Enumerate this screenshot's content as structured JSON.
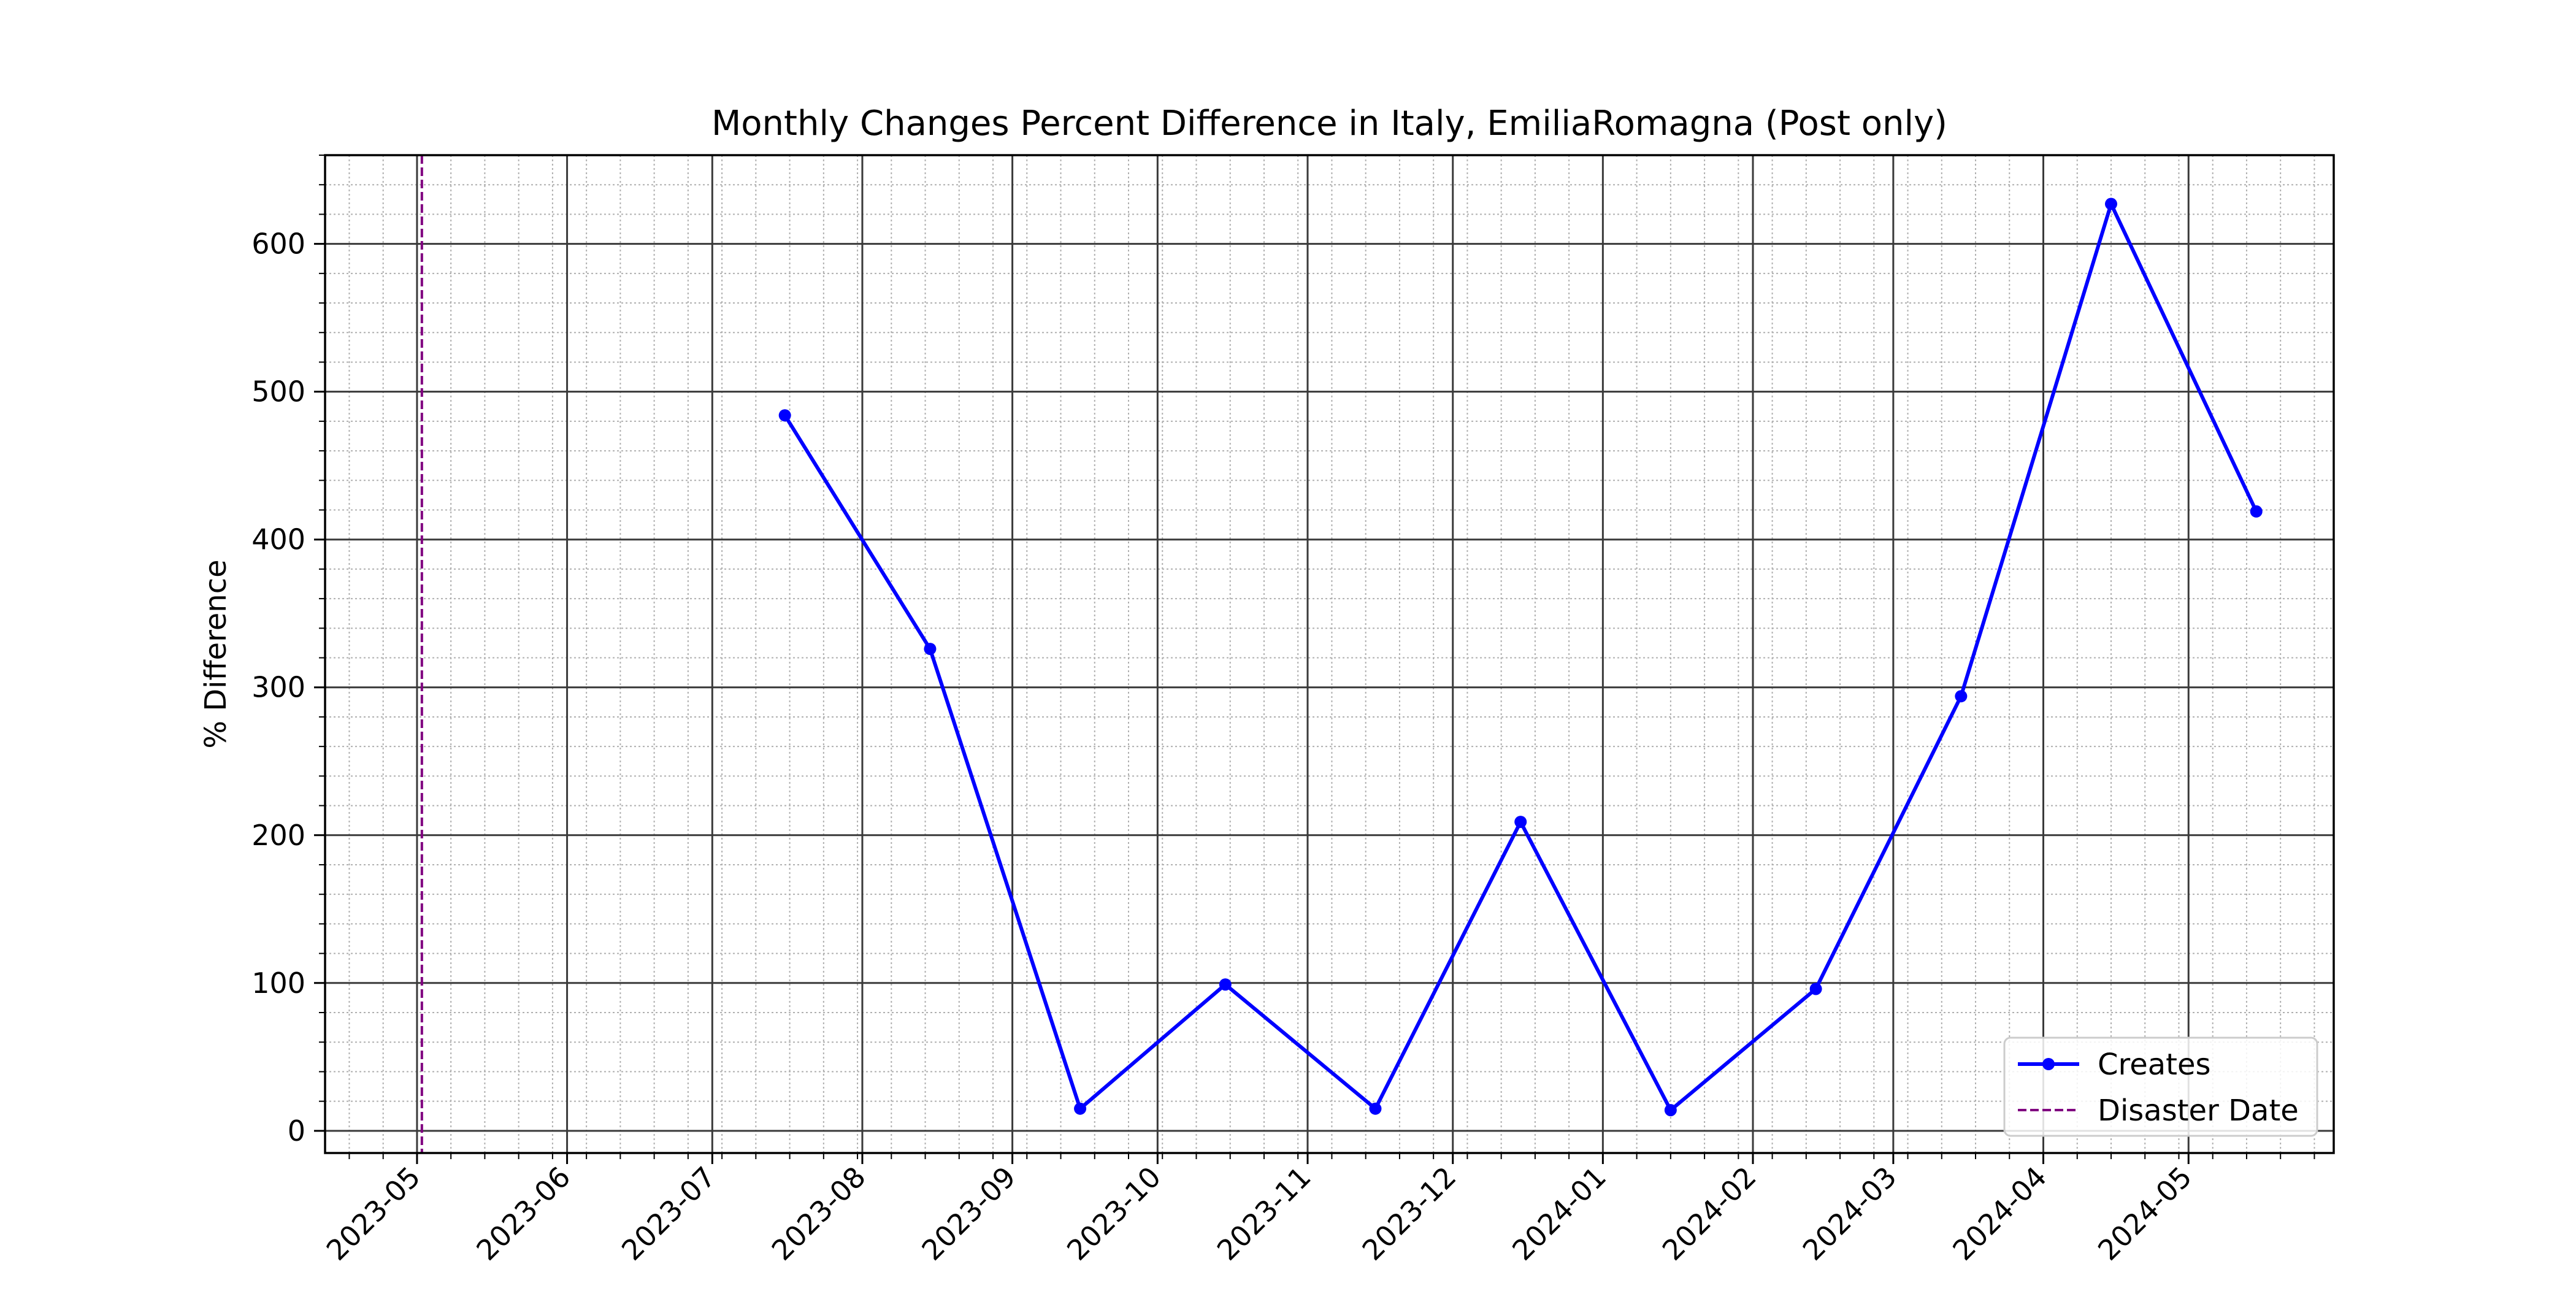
{
  "chart_data": {
    "type": "line",
    "title": "Monthly Changes Percent Difference in Italy, EmiliaRomagna (Post only)",
    "xlabel": "",
    "ylabel": "% Difference",
    "x_ticks": [
      "2023-05",
      "2023-06",
      "2023-07",
      "2023-08",
      "2023-09",
      "2023-10",
      "2023-11",
      "2023-12",
      "2024-01",
      "2024-02",
      "2024-03",
      "2024-04",
      "2024-05"
    ],
    "y_ticks": [
      0,
      100,
      200,
      300,
      400,
      500,
      600
    ],
    "xlim": [
      "2023-04-12",
      "2024-05-31"
    ],
    "ylim": [
      -15,
      660
    ],
    "grid": true,
    "minor_grid": true,
    "legend_position": "lower-right",
    "series": [
      {
        "name": "Creates",
        "color": "#0000ff",
        "marker": "circle",
        "x": [
          "2023-07-16",
          "2023-08-15",
          "2023-09-15",
          "2023-10-15",
          "2023-11-15",
          "2023-12-15",
          "2024-01-15",
          "2024-02-14",
          "2024-03-15",
          "2024-04-15",
          "2024-05-15"
        ],
        "y": [
          484,
          326,
          15,
          99,
          15,
          209,
          14,
          96,
          294,
          627,
          419
        ]
      }
    ],
    "vlines": [
      {
        "name": "Disaster Date",
        "x": "2023-05-02",
        "color": "#800080",
        "style": "dashed"
      }
    ]
  }
}
